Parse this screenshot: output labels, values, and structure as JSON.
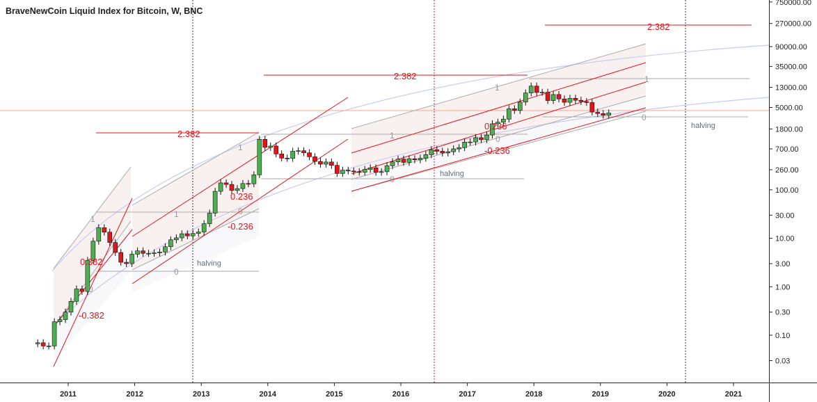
{
  "chart_data": {
    "type": "candlestick",
    "title": "BraveNewCoin Liquid Index for Bitcoin, W, BNC",
    "y_scale": "log",
    "ylim": [
      0.01,
      1000000
    ],
    "y_ticks": [
      "750000.00",
      "270000.00",
      "90000.00",
      "35000.00",
      "13000.00",
      "5000.00",
      "1800.00",
      "700.00",
      "260.00",
      "100.00",
      "30.00",
      "10.00",
      "3.00",
      "1.00",
      "0.30",
      "0.10",
      "0.03"
    ],
    "x_ticks": [
      "2011",
      "2012",
      "2013",
      "2014",
      "2015",
      "2016",
      "2017",
      "2018",
      "2019",
      "2020",
      "2021"
    ],
    "colors": {
      "up": "#4caf50",
      "down": "#e0161b",
      "fib_red": "#e0161b",
      "fib_grey": "#999999",
      "vline_red": "#c2185b",
      "vline_dark": "#333333",
      "price_line": "#f5a58a",
      "arc": "#c7cbf0"
    },
    "series": {
      "dates": [
        "2010-07",
        "2010-08",
        "2010-09",
        "2010-10",
        "2010-11",
        "2010-12",
        "2011-01",
        "2011-02",
        "2011-03",
        "2011-04",
        "2011-05",
        "2011-06",
        "2011-07",
        "2011-08",
        "2011-09",
        "2011-10",
        "2011-11",
        "2011-12",
        "2012-01",
        "2012-02",
        "2012-03",
        "2012-04",
        "2012-05",
        "2012-06",
        "2012-07",
        "2012-08",
        "2012-09",
        "2012-10",
        "2012-11",
        "2012-12",
        "2013-01",
        "2013-02",
        "2013-03",
        "2013-04",
        "2013-05",
        "2013-06",
        "2013-07",
        "2013-08",
        "2013-09",
        "2013-10",
        "2013-11",
        "2013-12",
        "2014-01",
        "2014-02",
        "2014-03",
        "2014-04",
        "2014-05",
        "2014-06",
        "2014-07",
        "2014-08",
        "2014-09",
        "2014-10",
        "2014-11",
        "2014-12",
        "2015-01",
        "2015-02",
        "2015-03",
        "2015-04",
        "2015-05",
        "2015-06",
        "2015-07",
        "2015-08",
        "2015-09",
        "2015-10",
        "2015-11",
        "2015-12",
        "2016-01",
        "2016-02",
        "2016-03",
        "2016-04",
        "2016-05",
        "2016-06",
        "2016-07",
        "2016-08",
        "2016-09",
        "2016-10",
        "2016-11",
        "2016-12",
        "2017-01",
        "2017-02",
        "2017-03",
        "2017-04",
        "2017-05",
        "2017-06",
        "2017-07",
        "2017-08",
        "2017-09",
        "2017-10",
        "2017-11",
        "2017-12",
        "2018-01",
        "2018-02",
        "2018-03",
        "2018-04",
        "2018-05",
        "2018-06",
        "2018-07",
        "2018-08",
        "2018-09",
        "2018-10",
        "2018-11",
        "2018-12",
        "2019-01",
        "2019-02"
      ],
      "close": [
        0.07,
        0.06,
        0.06,
        0.19,
        0.21,
        0.3,
        0.5,
        0.9,
        0.8,
        3.5,
        8.7,
        16.5,
        13.4,
        8.2,
        5.1,
        3.2,
        3.0,
        4.7,
        5.5,
        4.9,
        4.9,
        5.0,
        5.2,
        6.7,
        9.3,
        10.2,
        12.4,
        11.2,
        12.6,
        13.5,
        20,
        33,
        93,
        139,
        129,
        97,
        106,
        135,
        133,
        204,
        1100,
        750,
        800,
        550,
        450,
        445,
        625,
        640,
        580,
        480,
        385,
        338,
        375,
        320,
        217,
        254,
        244,
        236,
        230,
        263,
        284,
        230,
        236,
        314,
        377,
        430,
        368,
        437,
        416,
        448,
        531,
        673,
        624,
        575,
        609,
        700,
        742,
        963,
        970,
        1190,
        1080,
        1350,
        2300,
        2480,
        2875,
        4700,
        4340,
        6450,
        9950,
        13800,
        10200,
        10300,
        6930,
        9240,
        7490,
        6390,
        7730,
        7030,
        6620,
        6320,
        4020,
        3740,
        3450,
        3850
      ]
    },
    "annotations": {
      "fib_levels_red": [
        "2.382",
        "2.382",
        "2.382",
        "0.382",
        "-0.382",
        "0.236",
        "-0.236",
        "0.236",
        "-0.236"
      ],
      "fib_levels_grey": [
        "1",
        "0",
        "1",
        "0",
        "1",
        "0",
        "1",
        "0",
        "1",
        "0",
        "1",
        "0"
      ],
      "halving_labels": [
        "halving",
        "halving",
        "halving"
      ]
    }
  }
}
